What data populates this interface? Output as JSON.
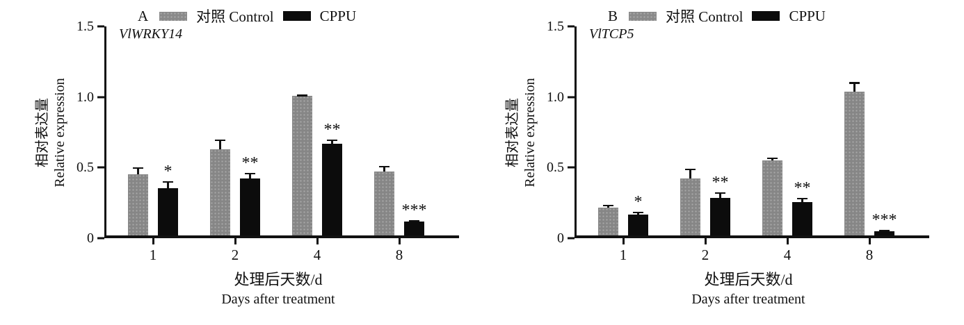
{
  "figure": {
    "background": "#ffffff",
    "colors": {
      "control": "#868686",
      "cppu": "#0c0c0c",
      "axis": "#111111"
    }
  },
  "chart_data": [
    {
      "type": "bar",
      "panel_label": "A",
      "gene": "VlWRKY14",
      "categories": [
        "1",
        "2",
        "4",
        "8"
      ],
      "series": [
        {
          "name": "对照 Control",
          "values": [
            0.44,
            0.62,
            1.0,
            0.46
          ],
          "errors": [
            0.05,
            0.07,
            0.01,
            0.04
          ]
        },
        {
          "name": "CPPU",
          "values": [
            0.34,
            0.41,
            0.66,
            0.1
          ],
          "errors": [
            0.05,
            0.04,
            0.03,
            0.01
          ]
        }
      ],
      "significance": [
        "*",
        "**",
        "**",
        "***"
      ],
      "ylabel_zh": "相对表达量",
      "ylabel_en": "Relative expression",
      "xlabel_zh": "处理后天数/d",
      "xlabel_en": "Days after treatment",
      "ylim": [
        0,
        1.5
      ],
      "yticks": [
        {
          "value": 0,
          "label": "0"
        },
        {
          "value": 0.5,
          "label": "0.5"
        },
        {
          "value": 1.0,
          "label": "1.0"
        },
        {
          "value": 1.5,
          "label": "1.5"
        }
      ],
      "legend_position": "top",
      "grid": false
    },
    {
      "type": "bar",
      "panel_label": "B",
      "gene": "VlTCP5",
      "categories": [
        "1",
        "2",
        "4",
        "8"
      ],
      "series": [
        {
          "name": "对照 Control",
          "values": [
            0.2,
            0.41,
            0.54,
            1.03
          ],
          "errors": [
            0.02,
            0.07,
            0.02,
            0.07
          ]
        },
        {
          "name": "CPPU",
          "values": [
            0.15,
            0.27,
            0.24,
            0.03
          ],
          "errors": [
            0.02,
            0.04,
            0.03,
            0.01
          ]
        }
      ],
      "significance": [
        "*",
        "**",
        "**",
        "***"
      ],
      "ylabel_zh": "相对表达量",
      "ylabel_en": "Relative expression",
      "xlabel_zh": "处理后天数/d",
      "xlabel_en": "Days after treatment",
      "ylim": [
        0,
        1.5
      ],
      "yticks": [
        {
          "value": 0,
          "label": "0"
        },
        {
          "value": 0.5,
          "label": "0.5"
        },
        {
          "value": 1.0,
          "label": "1.0"
        },
        {
          "value": 1.5,
          "label": "1.5"
        }
      ],
      "legend_position": "top",
      "grid": false
    }
  ]
}
